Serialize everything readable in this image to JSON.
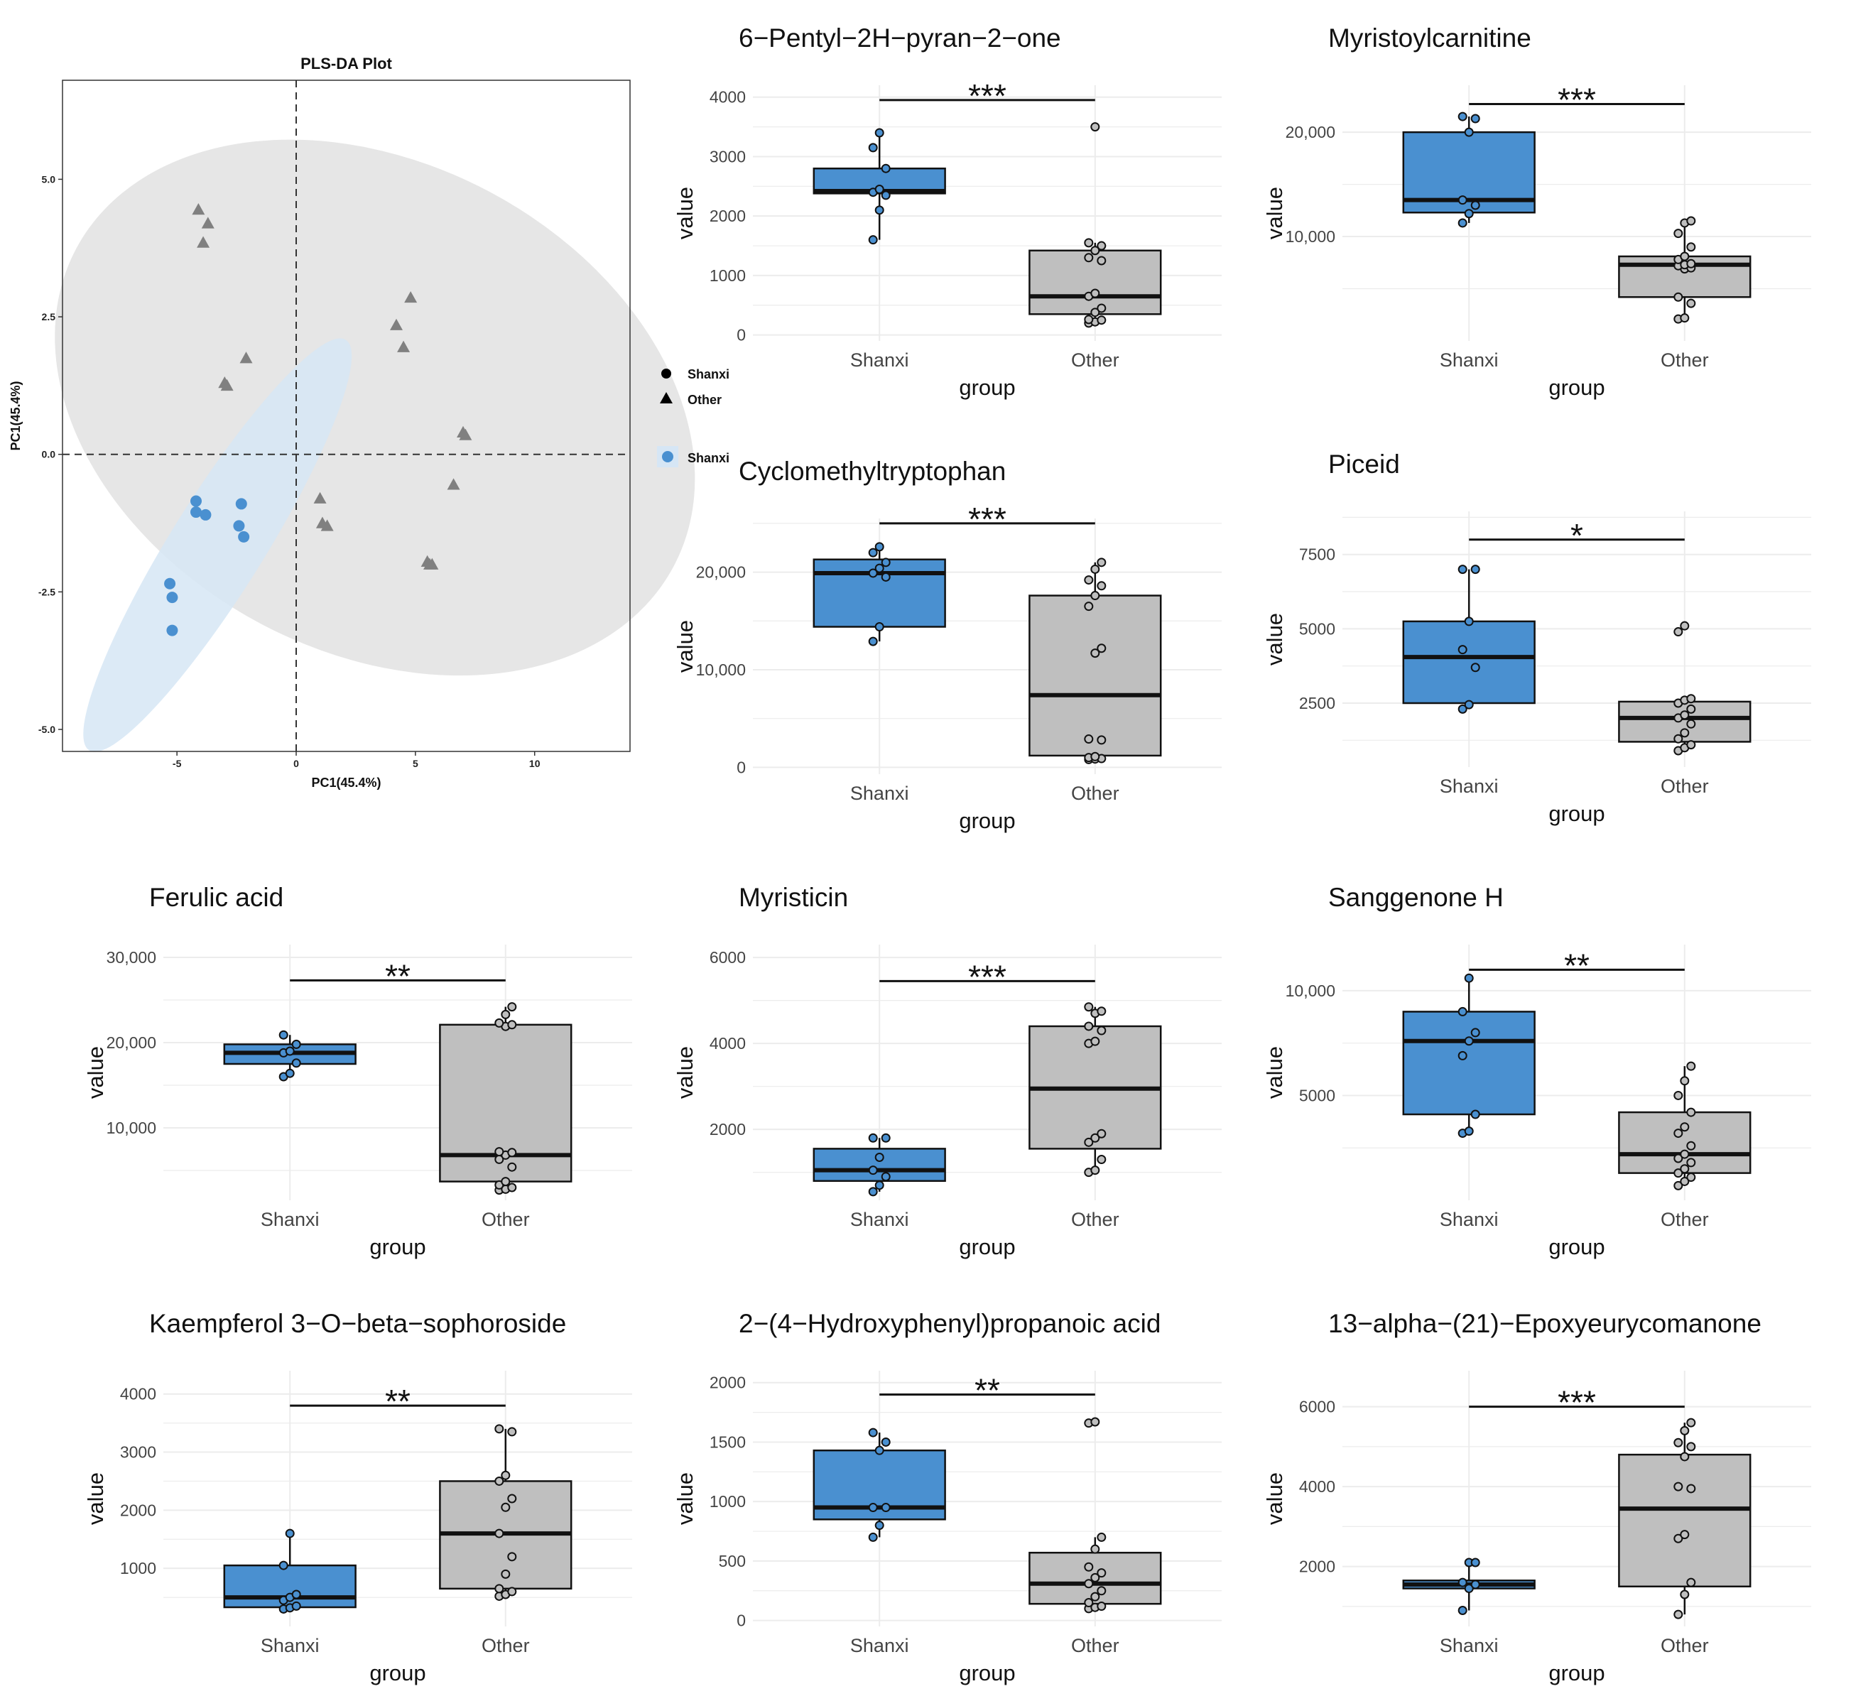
{
  "colors": {
    "shanxi": "#4a90d0",
    "other": "#bfbfbf",
    "other_points": "#808080",
    "shanxi_ellipse": "#d6e6f5",
    "other_ellipse": "#e6e6e6",
    "grid": "#ececec"
  },
  "pls": {
    "title": "PLS-DA Plot",
    "xlabel": "PC1(45.4%)",
    "ylabel": "PC1(45.4%)",
    "legend_shape_title": "",
    "legend_shanxi": "Shanxi",
    "legend_other": "Other",
    "legend_fill_shanxi": "Shanxi"
  },
  "chart_data": [
    {
      "type": "scatter",
      "title": "PLS-DA Plot",
      "xlabel": "PC1(45.4%)",
      "ylabel": "PC1(45.4%)",
      "xlim": [
        -9.8,
        14
      ],
      "ylim": [
        -5.4,
        6.8
      ],
      "xticks": [
        -5,
        0,
        5,
        10
      ],
      "yticks": [
        -5.0,
        -2.5,
        0.0,
        2.5,
        5.0
      ],
      "ytick_labels": [
        "-5.0",
        "-2.5",
        "0.0",
        "2.5",
        "5.0"
      ],
      "grid": false,
      "series": [
        {
          "name": "Shanxi",
          "marker": "circle",
          "points": [
            [
              -4.2,
              -0.85
            ],
            [
              -4.2,
              -1.05
            ],
            [
              -3.8,
              -1.1
            ],
            [
              -2.3,
              -0.9
            ],
            [
              -2.4,
              -1.3
            ],
            [
              -2.2,
              -1.5
            ],
            [
              -5.3,
              -2.35
            ],
            [
              -5.2,
              -2.6
            ],
            [
              -5.2,
              -3.2
            ]
          ]
        },
        {
          "name": "Other",
          "marker": "triangle",
          "points": [
            [
              -4.1,
              4.45
            ],
            [
              -3.7,
              4.2
            ],
            [
              -3.9,
              3.85
            ],
            [
              -2.1,
              1.75
            ],
            [
              -3.0,
              1.3
            ],
            [
              -2.9,
              1.25
            ],
            [
              4.8,
              2.85
            ],
            [
              4.2,
              2.35
            ],
            [
              4.5,
              1.95
            ],
            [
              7.0,
              0.4
            ],
            [
              7.1,
              0.35
            ],
            [
              6.6,
              -0.55
            ],
            [
              1.0,
              -0.8
            ],
            [
              1.1,
              -1.25
            ],
            [
              1.3,
              -1.3
            ],
            [
              5.5,
              -1.95
            ],
            [
              5.7,
              -2.0
            ],
            [
              5.6,
              -2.0
            ]
          ]
        }
      ],
      "ellipses": [
        {
          "group": "Other",
          "center": [
            3.3,
            0.85
          ],
          "radii": [
            10.25,
            6.15
          ],
          "rotation_deg": -62
        },
        {
          "group": "Shanxi",
          "center": [
            -3.3,
            -1.65
          ],
          "radii": [
            1.95,
            4.4
          ],
          "rotation_deg": 32
        }
      ],
      "legend": "right"
    },
    {
      "type": "box",
      "title": "6−Pentyl−2H−pyran−2−one",
      "xlabel": "group",
      "ylabel": "value",
      "categories": [
        "Shanxi",
        "Other"
      ],
      "ylim": [
        -100,
        4200
      ],
      "yticks": [
        0,
        1000,
        2000,
        3000,
        4000
      ],
      "ytick_labels": [
        "0",
        "1000",
        "2000",
        "3000",
        "4000"
      ],
      "significance": "***",
      "sig_y": 3950,
      "boxes": [
        {
          "q1": 2380,
          "median": 2420,
          "q3": 2800,
          "whisker_low": 1600,
          "whisker_high": 3400,
          "points": [
            1600,
            2100,
            2350,
            2400,
            2450,
            2800,
            3150,
            3400
          ]
        },
        {
          "q1": 350,
          "median": 650,
          "q3": 1420,
          "whisker_low": 200,
          "whisker_high": 1550,
          "points": [
            200,
            220,
            250,
            260,
            380,
            450,
            650,
            700,
            1250,
            1300,
            1420,
            1500,
            1550,
            3500
          ]
        }
      ]
    },
    {
      "type": "box",
      "title": "Myristoylcarnitine",
      "xlabel": "group",
      "ylabel": "value",
      "categories": [
        "Shanxi",
        "Other"
      ],
      "ylim": [
        0,
        24500
      ],
      "yticks": [
        10000,
        20000
      ],
      "ytick_labels": [
        "10,000",
        "20,000"
      ],
      "significance": "***",
      "sig_y": 22700,
      "boxes": [
        {
          "q1": 12300,
          "median": 13500,
          "q3": 20000,
          "whisker_low": 11300,
          "whisker_high": 21500,
          "points": [
            11300,
            12200,
            13000,
            13500,
            20000,
            21300,
            21500
          ]
        },
        {
          "q1": 4200,
          "median": 7300,
          "q3": 8100,
          "whisker_low": 2100,
          "whisker_high": 11500,
          "points": [
            2100,
            2200,
            3600,
            4200,
            6900,
            7000,
            7200,
            7300,
            7400,
            7800,
            8100,
            9000,
            10300,
            11300,
            11500
          ]
        }
      ]
    },
    {
      "type": "box",
      "title": "Cyclomethyltryptophan",
      "xlabel": "group",
      "ylabel": "value",
      "categories": [
        "Shanxi",
        "Other"
      ],
      "ylim": [
        -700,
        25500
      ],
      "yticks": [
        0,
        10000,
        20000
      ],
      "ytick_labels": [
        "0",
        "10,000",
        "20,000"
      ],
      "significance": "***",
      "sig_y": 25000,
      "boxes": [
        {
          "q1": 14400,
          "median": 19900,
          "q3": 21300,
          "whisker_low": 12900,
          "whisker_high": 22600,
          "points": [
            12900,
            14400,
            19500,
            19900,
            20400,
            21000,
            22000,
            22600
          ]
        },
        {
          "q1": 1200,
          "median": 7400,
          "q3": 17600,
          "whisker_low": 800,
          "whisker_high": 21000,
          "points": [
            800,
            850,
            900,
            1000,
            1100,
            2800,
            2900,
            11700,
            12200,
            16500,
            17600,
            18600,
            19200,
            20300,
            21000
          ]
        }
      ]
    },
    {
      "type": "box",
      "title": "Piceid",
      "xlabel": "group",
      "ylabel": "value",
      "categories": [
        "Shanxi",
        "Other"
      ],
      "ylim": [
        350,
        8950
      ],
      "yticks": [
        2500,
        5000,
        7500
      ],
      "ytick_labels": [
        "2500",
        "5000",
        "7500"
      ],
      "significance": "*",
      "sig_y": 8000,
      "boxes": [
        {
          "q1": 2500,
          "median": 4050,
          "q3": 5250,
          "whisker_low": 2300,
          "whisker_high": 7000,
          "points": [
            2300,
            2450,
            3700,
            4300,
            5250,
            7000,
            7000
          ]
        },
        {
          "q1": 1200,
          "median": 2000,
          "q3": 2550,
          "whisker_low": 900,
          "whisker_high": 2650,
          "points": [
            900,
            1000,
            1100,
            1300,
            1500,
            1800,
            2000,
            2100,
            2300,
            2500,
            2600,
            2650,
            4900,
            5100
          ]
        }
      ]
    },
    {
      "type": "box",
      "title": "Ferulic acid",
      "xlabel": "group",
      "ylabel": "value",
      "categories": [
        "Shanxi",
        "Other"
      ],
      "ylim": [
        1500,
        31500
      ],
      "yticks": [
        10000,
        20000,
        30000
      ],
      "ytick_labels": [
        "10,000",
        "20,000",
        "30,000"
      ],
      "significance": "**",
      "sig_y": 27300,
      "boxes": [
        {
          "q1": 17500,
          "median": 18800,
          "q3": 19800,
          "whisker_low": 16000,
          "whisker_high": 20900,
          "points": [
            16000,
            16400,
            17600,
            18800,
            19000,
            19800,
            20900
          ]
        },
        {
          "q1": 3700,
          "median": 6800,
          "q3": 22100,
          "whisker_low": 2700,
          "whisker_high": 24200,
          "points": [
            2700,
            2800,
            3000,
            3300,
            3700,
            5400,
            6300,
            6800,
            7100,
            7200,
            21900,
            22100,
            22300,
            23300,
            24200
          ]
        }
      ]
    },
    {
      "type": "box",
      "title": "Myristicin",
      "xlabel": "group",
      "ylabel": "value",
      "categories": [
        "Shanxi",
        "Other"
      ],
      "ylim": [
        350,
        6300
      ],
      "yticks": [
        2000,
        4000,
        6000
      ],
      "ytick_labels": [
        "2000",
        "4000",
        "6000"
      ],
      "significance": "***",
      "sig_y": 5450,
      "boxes": [
        {
          "q1": 800,
          "median": 1050,
          "q3": 1550,
          "whisker_low": 550,
          "whisker_high": 1800,
          "points": [
            550,
            700,
            900,
            1050,
            1350,
            1800,
            1800
          ]
        },
        {
          "q1": 1550,
          "median": 2950,
          "q3": 4400,
          "whisker_low": 1000,
          "whisker_high": 4850,
          "points": [
            1000,
            1050,
            1300,
            1700,
            1800,
            1900,
            4000,
            4050,
            4300,
            4400,
            4700,
            4750,
            4850
          ]
        }
      ]
    },
    {
      "type": "box",
      "title": "Sanggenone H",
      "xlabel": "group",
      "ylabel": "value",
      "categories": [
        "Shanxi",
        "Other"
      ],
      "ylim": [
        0,
        12200
      ],
      "yticks": [
        5000,
        10000
      ],
      "ytick_labels": [
        "5000",
        "10,000"
      ],
      "significance": "**",
      "sig_y": 11000,
      "boxes": [
        {
          "q1": 4100,
          "median": 7600,
          "q3": 9000,
          "whisker_low": 3200,
          "whisker_high": 10600,
          "points": [
            3200,
            3300,
            4100,
            6900,
            7600,
            8000,
            9000,
            10600
          ]
        },
        {
          "q1": 1300,
          "median": 2200,
          "q3": 4200,
          "whisker_low": 700,
          "whisker_high": 6400,
          "points": [
            700,
            900,
            1100,
            1300,
            1500,
            1800,
            2000,
            2200,
            2600,
            3200,
            3500,
            4200,
            5000,
            5700,
            6400
          ]
        }
      ]
    },
    {
      "type": "box",
      "title": "Kaempferol 3−O−beta−sophoroside",
      "xlabel": "group",
      "ylabel": "value",
      "categories": [
        "Shanxi",
        "Other"
      ],
      "ylim": [
        0,
        4400
      ],
      "yticks": [
        1000,
        2000,
        3000,
        4000
      ],
      "ytick_labels": [
        "1000",
        "2000",
        "3000",
        "4000"
      ],
      "significance": "**",
      "sig_y": 3800,
      "boxes": [
        {
          "q1": 330,
          "median": 500,
          "q3": 1050,
          "whisker_low": 300,
          "whisker_high": 1600,
          "points": [
            300,
            320,
            350,
            450,
            500,
            550,
            1050,
            1600
          ]
        },
        {
          "q1": 650,
          "median": 1600,
          "q3": 2500,
          "whisker_low": 520,
          "whisker_high": 3400,
          "points": [
            520,
            550,
            600,
            650,
            900,
            1200,
            1600,
            2050,
            2200,
            2500,
            2600,
            3350,
            3400
          ]
        }
      ]
    },
    {
      "type": "box",
      "title": "2−(4−Hydroxyphenyl)propanoic acid",
      "xlabel": "group",
      "ylabel": "value",
      "categories": [
        "Shanxi",
        "Other"
      ],
      "ylim": [
        -50,
        2100
      ],
      "yticks": [
        0,
        500,
        1000,
        1500,
        2000
      ],
      "ytick_labels": [
        "0",
        "500",
        "1000",
        "1500",
        "2000"
      ],
      "significance": "**",
      "sig_y": 1900,
      "boxes": [
        {
          "q1": 850,
          "median": 950,
          "q3": 1430,
          "whisker_low": 700,
          "whisker_high": 1580,
          "points": [
            700,
            800,
            950,
            950,
            1430,
            1500,
            1580
          ]
        },
        {
          "q1": 140,
          "median": 310,
          "q3": 570,
          "whisker_low": 100,
          "whisker_high": 700,
          "points": [
            100,
            110,
            120,
            150,
            200,
            250,
            310,
            360,
            400,
            450,
            600,
            700,
            1660,
            1670
          ]
        }
      ]
    },
    {
      "type": "box",
      "title": "13−alpha−(21)−Epoxyeurycomanone",
      "xlabel": "group",
      "ylabel": "value",
      "categories": [
        "Shanxi",
        "Other"
      ],
      "ylim": [
        500,
        6900
      ],
      "yticks": [
        2000,
        4000,
        6000
      ],
      "ytick_labels": [
        "2000",
        "4000",
        "6000"
      ],
      "significance": "***",
      "sig_y": 6000,
      "boxes": [
        {
          "q1": 1450,
          "median": 1550,
          "q3": 1650,
          "whisker_low": 900,
          "whisker_high": 2100,
          "points": [
            900,
            1450,
            1550,
            1600,
            2100,
            2100
          ]
        },
        {
          "q1": 1500,
          "median": 3450,
          "q3": 4800,
          "whisker_low": 800,
          "whisker_high": 5600,
          "points": [
            800,
            1300,
            1600,
            2700,
            2800,
            3950,
            4000,
            4750,
            5000,
            5100,
            5400,
            5600
          ]
        }
      ]
    }
  ]
}
